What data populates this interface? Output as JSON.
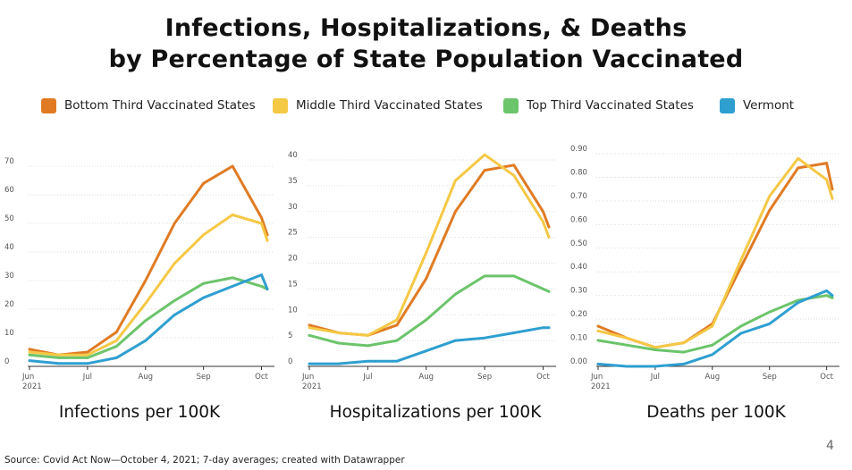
{
  "title": {
    "line1": "Infections, Hospitalizations, & Deaths",
    "line2": "by Percentage of State Population Vaccinated"
  },
  "legend": [
    {
      "label": "Bottom Third Vaccinated States",
      "color": "#e07b24"
    },
    {
      "label": "Middle Third Vaccinated States",
      "color": "#f5c845"
    },
    {
      "label": "Top Third Vaccinated States",
      "color": "#6cc46b"
    },
    {
      "label": "Vermont",
      "color": "#2f9fd0"
    }
  ],
  "source": "Source: Covid Act Now—October 4, 2021; 7-day averages; created with Datawrapper",
  "page_number": "4",
  "chart_data": [
    {
      "type": "line",
      "caption": "Infections per 100K",
      "x": [
        "Jun 1",
        "Jun 15",
        "Jul 1",
        "Jul 15",
        "Aug 1",
        "Aug 15",
        "Sep 1",
        "Sep 15",
        "Oct 1",
        "Oct 4"
      ],
      "x_tick_labels": [
        [
          "Jun",
          "2021"
        ],
        [
          "Jul"
        ],
        [
          "Aug"
        ],
        [
          "Sep"
        ],
        [
          "Oct"
        ]
      ],
      "ylim": [
        0,
        70
      ],
      "y_ticks": [
        "0",
        "10",
        "20",
        "30",
        "40",
        "50",
        "60",
        "70"
      ],
      "grid": true,
      "series": [
        {
          "name": "Bottom Third Vaccinated States",
          "color": "#e07b24",
          "values": [
            6,
            4,
            5,
            12,
            30,
            50,
            64,
            70,
            52,
            46
          ]
        },
        {
          "name": "Middle Third Vaccinated States",
          "color": "#f5c845",
          "values": [
            5,
            4,
            4,
            9,
            22,
            36,
            46,
            53,
            50,
            44
          ]
        },
        {
          "name": "Top Third Vaccinated States",
          "color": "#6cc46b",
          "values": [
            4,
            3,
            3,
            7,
            16,
            23,
            29,
            31,
            28,
            27
          ]
        },
        {
          "name": "Vermont",
          "color": "#2f9fd0",
          "values": [
            2,
            1,
            1,
            3,
            9,
            18,
            24,
            28,
            32,
            27
          ]
        }
      ]
    },
    {
      "type": "line",
      "caption": "Hospitalizations per 100K",
      "x": [
        "Jun 1",
        "Jun 15",
        "Jul 1",
        "Jul 15",
        "Aug 1",
        "Aug 15",
        "Sep 1",
        "Sep 15",
        "Oct 1",
        "Oct 4"
      ],
      "x_tick_labels": [
        [
          "Jun",
          "2021"
        ],
        [
          "Jul"
        ],
        [
          "Aug"
        ],
        [
          "Sep"
        ],
        [
          "Oct"
        ]
      ],
      "ylim": [
        0,
        40
      ],
      "y_ticks": [
        "0",
        "5",
        "10",
        "15",
        "20",
        "25",
        "30",
        "35",
        "40"
      ],
      "grid": true,
      "series": [
        {
          "name": "Bottom Third Vaccinated States",
          "color": "#e07b24",
          "values": [
            8,
            6.5,
            6,
            8,
            17,
            30,
            38,
            39,
            30,
            27
          ]
        },
        {
          "name": "Middle Third Vaccinated States",
          "color": "#f5c845",
          "values": [
            7.5,
            6.5,
            6,
            9,
            22,
            36,
            41,
            37,
            28,
            25
          ]
        },
        {
          "name": "Top Third Vaccinated States",
          "color": "#6cc46b",
          "values": [
            6,
            4.5,
            4,
            5,
            9,
            14,
            17.5,
            17.5,
            15,
            14.5
          ]
        },
        {
          "name": "Vermont",
          "color": "#2f9fd0",
          "values": [
            0.5,
            0.5,
            1,
            1,
            3,
            5,
            5.5,
            6.5,
            7.5,
            7.5
          ]
        }
      ]
    },
    {
      "type": "line",
      "caption": "Deaths per 100K",
      "x": [
        "Jun 1",
        "Jun 15",
        "Jul 1",
        "Jul 15",
        "Aug 1",
        "Aug 15",
        "Sep 1",
        "Sep 15",
        "Oct 1",
        "Oct 4"
      ],
      "x_tick_labels": [
        [
          "Jun",
          "2021"
        ],
        [
          "Jul"
        ],
        [
          "Aug"
        ],
        [
          "Sep"
        ],
        [
          "Oct"
        ]
      ],
      "ylim": [
        0,
        0.9
      ],
      "y_ticks": [
        "0.00",
        "0.10",
        "0.20",
        "0.30",
        "0.40",
        "0.50",
        "0.60",
        "0.70",
        "0.80",
        "0.90"
      ],
      "grid": true,
      "series": [
        {
          "name": "Bottom Third Vaccinated States",
          "color": "#e07b24",
          "values": [
            0.17,
            0.12,
            0.08,
            0.1,
            0.18,
            0.42,
            0.66,
            0.84,
            0.86,
            0.75
          ]
        },
        {
          "name": "Middle Third Vaccinated States",
          "color": "#f5c845",
          "values": [
            0.15,
            0.12,
            0.08,
            0.1,
            0.17,
            0.45,
            0.72,
            0.88,
            0.79,
            0.71
          ]
        },
        {
          "name": "Top Third Vaccinated States",
          "color": "#6cc46b",
          "values": [
            0.11,
            0.09,
            0.07,
            0.06,
            0.09,
            0.17,
            0.23,
            0.28,
            0.3,
            0.29
          ]
        },
        {
          "name": "Vermont",
          "color": "#2f9fd0",
          "values": [
            0.01,
            0.0,
            0.0,
            0.01,
            0.05,
            0.14,
            0.18,
            0.27,
            0.32,
            0.3
          ]
        }
      ]
    }
  ]
}
